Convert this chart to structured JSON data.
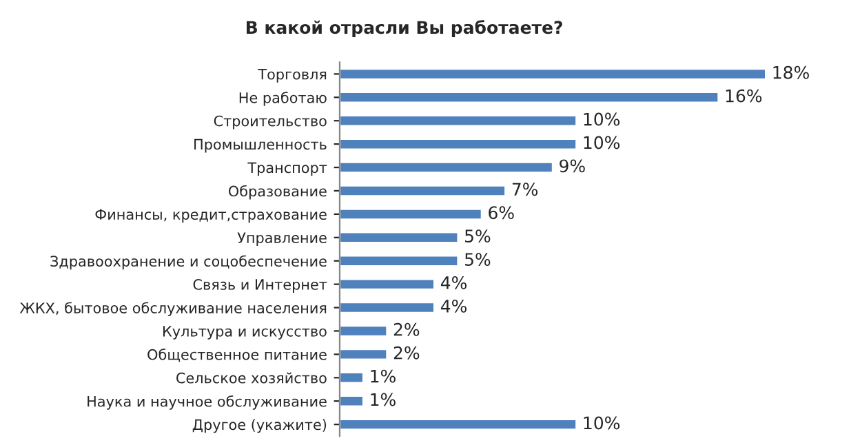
{
  "chart_data": {
    "type": "bar",
    "orientation": "horizontal",
    "title": "В какой отрасли Вы работаете?",
    "categories": [
      "Торговля",
      "Не работаю",
      "Строительство",
      "Промышленность",
      "Транспорт",
      "Образование",
      "Финансы, кредит,страхование",
      "Управление",
      "Здравоохранение и соцобеспечение",
      "Связь и Интернет",
      "ЖКХ, бытовое обслуживание населения",
      "Культура и искусство",
      "Общественное питание",
      "Сельское хозяйство",
      "Наука и научное обслуживание",
      "Другое (укажите)"
    ],
    "values": [
      18,
      16,
      10,
      10,
      9,
      7,
      6,
      5,
      5,
      4,
      4,
      2,
      2,
      1,
      1,
      10
    ],
    "value_labels": [
      "18%",
      "16%",
      "10%",
      "10%",
      "9%",
      "7%",
      "6%",
      "5%",
      "5%",
      "4%",
      "4%",
      "2%",
      "2%",
      "1%",
      "1%",
      "10%"
    ],
    "color": "#4f81bd",
    "grid": false,
    "legend": false
  }
}
